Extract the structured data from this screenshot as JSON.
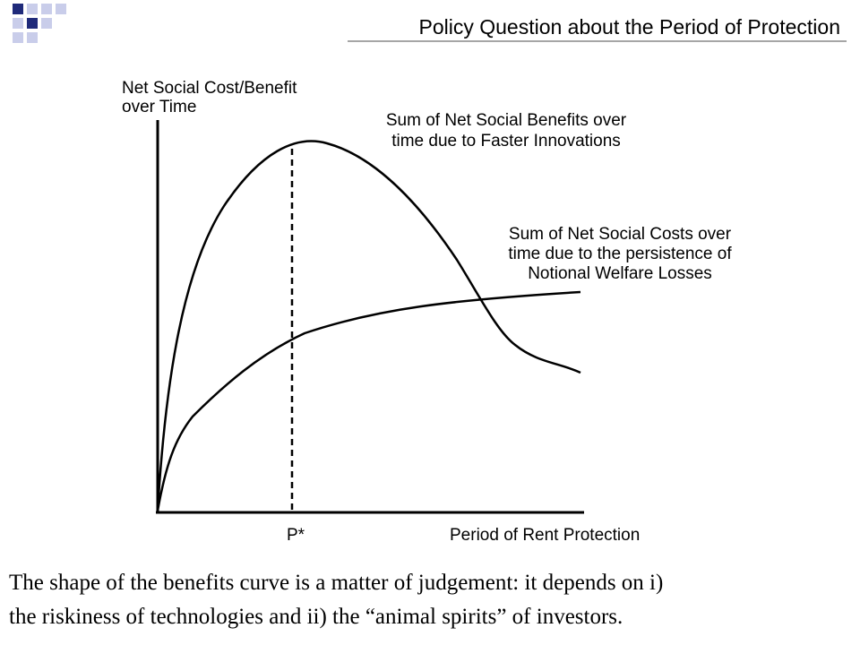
{
  "header": {
    "title": "Policy Question about the Period of Protection"
  },
  "diagram": {
    "y_axis_label": [
      "Net Social Cost/Benefit",
      "over Time"
    ],
    "x_axis_label": "Period of Rent Protection",
    "marker_label": "P*",
    "benefits_label": [
      "Sum of Net Social Benefits over",
      "time due to Faster Innovations"
    ],
    "costs_label": [
      "Sum of Net Social Costs over",
      "time due to the persistence of",
      "Notional Welfare Losses"
    ]
  },
  "caption": [
    "The shape of the benefits curve is a matter of judgement:  it depends on i)",
    "the riskiness of technologies and ii) the “animal spirits” of investors."
  ]
}
